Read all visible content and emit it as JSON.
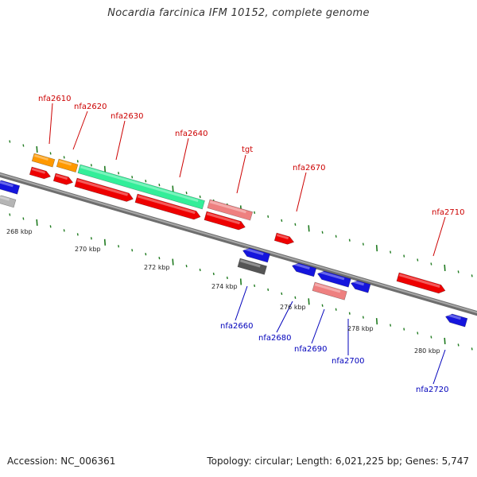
{
  "title": "Nocardia farcinica IFM 10152, complete genome",
  "footer": {
    "accession": "Accession: NC_006361",
    "summary": "Topology: circular; Length: 6,021,225 bp; Genes: 5,747"
  },
  "colors": {
    "backbone": "#8a8a8a",
    "tick": "#1f7a1f",
    "forward_label": "#cc0000",
    "reverse_label": "#0000bb",
    "red_gene": "#ee0000",
    "blue_gene": "#1515dd",
    "orange_gene": "#ff9900",
    "rrna_gene": "#33ee99",
    "trna_gene": "#ee8080",
    "pseudo_gene": "#555555",
    "light_gene": "#b5b5b5"
  },
  "scale_labels": [
    "268 kbp",
    "270 kbp",
    "272 kbp",
    "274 kbp",
    "276 kbp",
    "278 kbp",
    "280 kbp"
  ],
  "forward_labels": [
    "nfa2610",
    "nfa2620",
    "nfa2630",
    "nfa2640",
    "tgt",
    "nfa2670",
    "nfa2710"
  ],
  "reverse_labels": [
    "nfa2660",
    "nfa2680",
    "nfa2690",
    "nfa2700",
    "nfa2720"
  ]
}
